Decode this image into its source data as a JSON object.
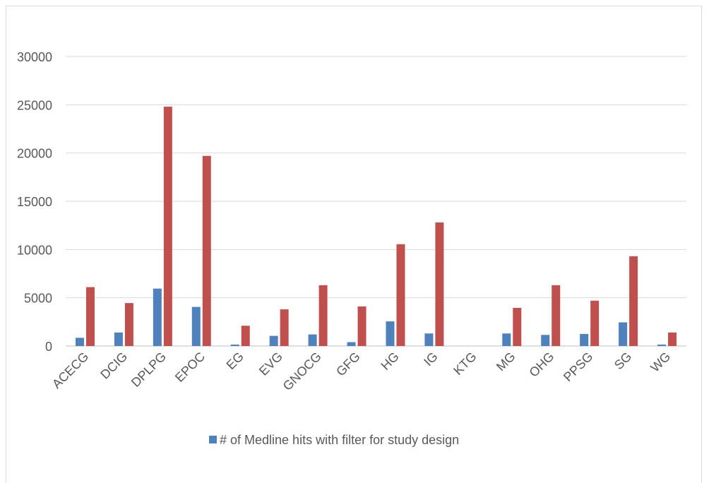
{
  "chart_data": {
    "type": "bar",
    "title": "",
    "xlabel": "",
    "ylabel": "",
    "ylim": [
      0,
      30000
    ],
    "yticks": [
      "0",
      "5000",
      "10000",
      "15000",
      "20000",
      "25000",
      "30000"
    ],
    "ytick_values": [
      0,
      5000,
      10000,
      15000,
      20000,
      25000,
      30000
    ],
    "grid": true,
    "legend_position": "bottom",
    "categories": [
      "ACECG",
      "DCIG",
      "DPLPG",
      "EPOC",
      "EG",
      "EVG",
      "GNOCG",
      "GFG",
      "HG",
      "IG",
      "KTG",
      "MG",
      "OHG",
      "PPSG",
      "SG",
      "WG"
    ],
    "series": [
      {
        "name": "# of Medline hits with filter for study design",
        "color": "#4f81bd",
        "values": [
          850,
          1400,
          5950,
          4050,
          150,
          1050,
          1200,
          400,
          2550,
          1300,
          0,
          1300,
          1150,
          1250,
          2450,
          150
        ]
      },
      {
        "color": "#c0504d",
        "values": [
          6100,
          4450,
          24800,
          19700,
          2100,
          3800,
          6300,
          4100,
          10550,
          12800,
          0,
          3950,
          6300,
          4700,
          9300,
          1400
        ]
      }
    ]
  }
}
